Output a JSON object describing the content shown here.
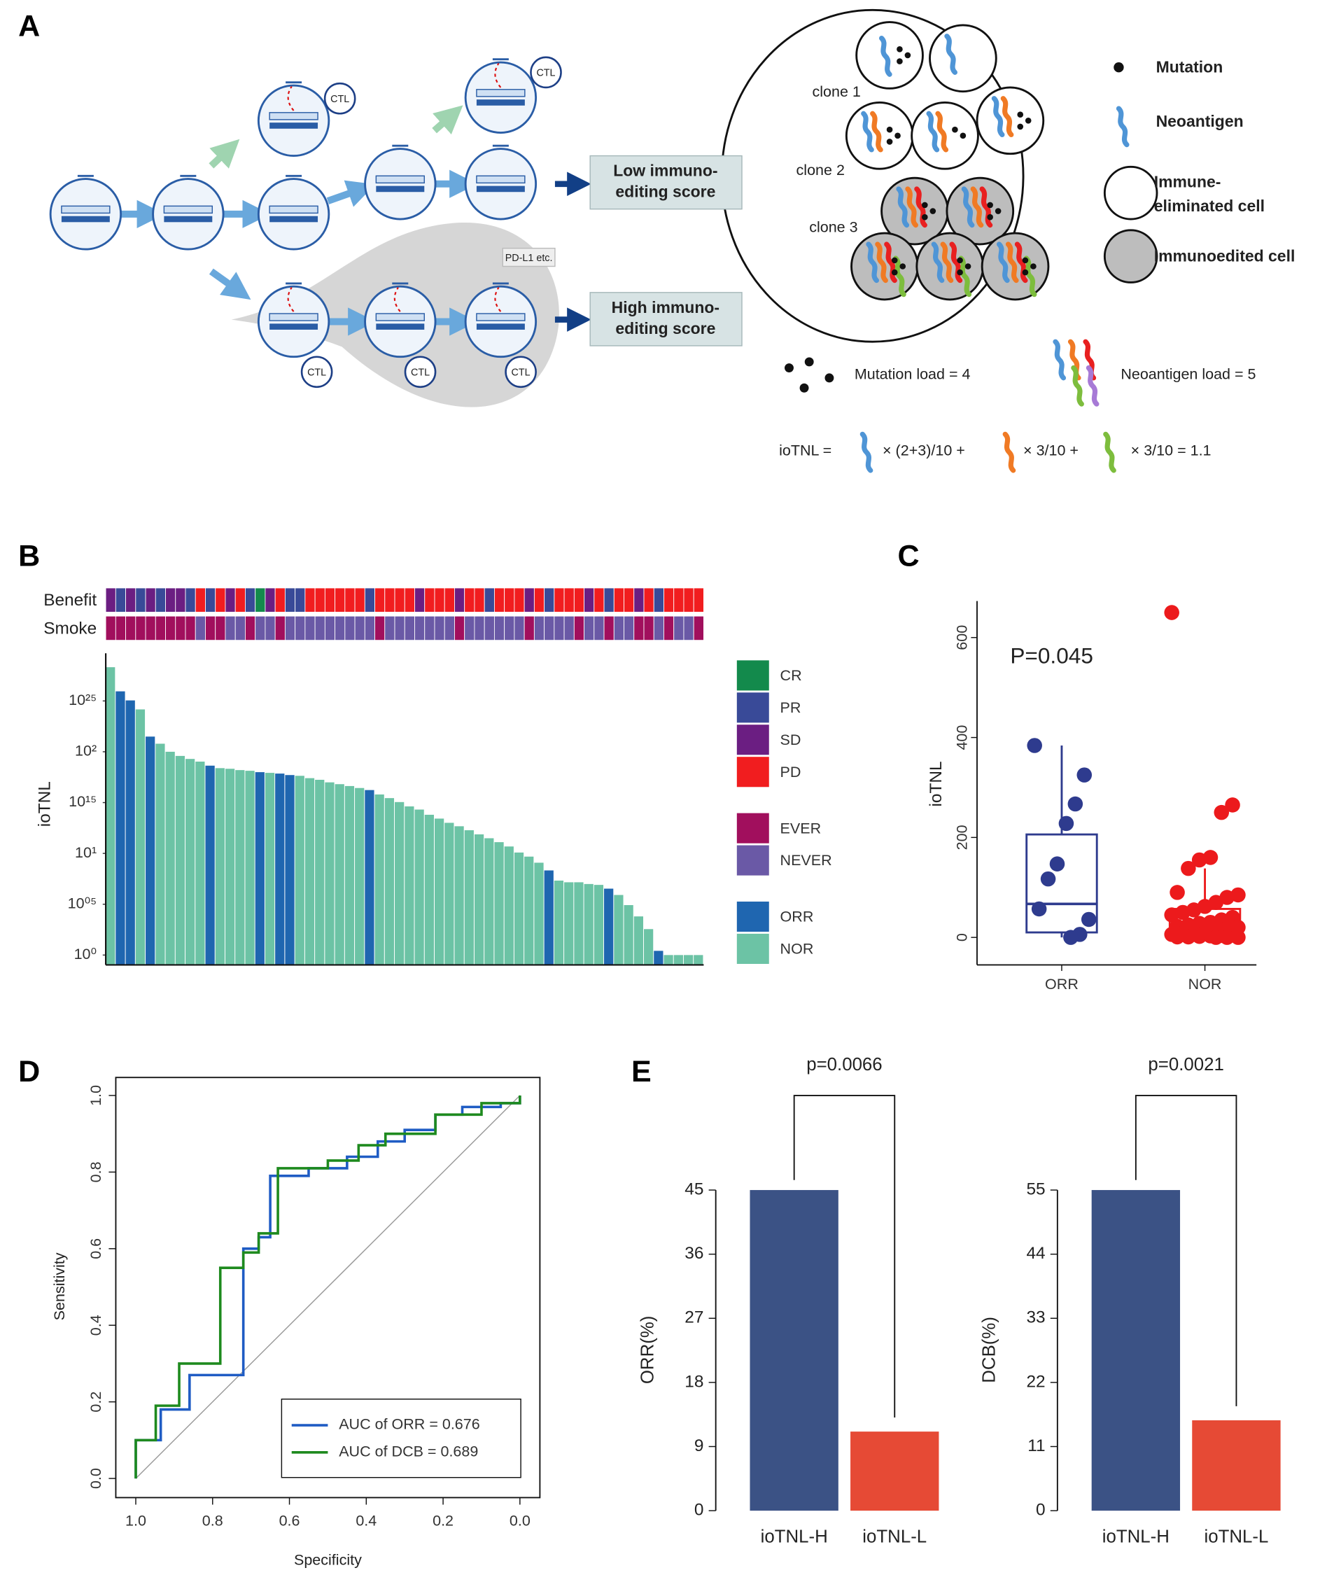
{
  "panel_labels": [
    "A",
    "B",
    "C",
    "D",
    "E"
  ],
  "diagram": {
    "ctl": "CTL",
    "pdl1": "PD-L1 etc.",
    "low_score": [
      "Low immuno-",
      "editing score"
    ],
    "high_score": [
      "High immuno-",
      "editing score"
    ],
    "clones": [
      "clone 1",
      "clone 2",
      "clone 3"
    ],
    "legend": {
      "mutation": "Mutation",
      "neoantigen": "Neoantigen",
      "eliminated": [
        "Immune-",
        "eliminated cell"
      ],
      "edited": "Immunoedited cell"
    },
    "mutation_load": "Mutation load = 4",
    "neoantigen_load": "Neoantigen load = 5",
    "formula": [
      "ioTNL =",
      "× (2+3)/10 +",
      "× 3/10 +",
      "× 3/10 = 1.1"
    ]
  },
  "chart_data": [
    {
      "type": "bar",
      "y_label": "ioTNL",
      "log_y": true,
      "ylim": [
        0.8,
        930
      ],
      "yticks": [
        {
          "value": 1,
          "label": "10⁰"
        },
        {
          "value": 3.162,
          "label": "10⁰⁵"
        },
        {
          "value": 10,
          "label": "10¹"
        },
        {
          "value": 31.62,
          "label": "10¹⁵"
        },
        {
          "value": 100,
          "label": "10²"
        },
        {
          "value": 316.2,
          "label": "10²⁵"
        }
      ],
      "values": [
        679,
        393,
        320,
        261,
        141,
        120,
        100,
        91,
        85,
        80,
        73,
        69,
        68,
        66,
        65,
        63,
        62,
        61,
        59,
        58,
        55,
        53,
        50,
        48,
        46,
        44,
        42,
        38,
        35,
        32,
        29,
        27,
        24,
        22,
        20,
        18.5,
        16.9,
        15.4,
        14.1,
        12.9,
        11.7,
        10.2,
        9.3,
        8.1,
        6.8,
        5.4,
        5.2,
        5.2,
        5.0,
        4.9,
        4.5,
        3.9,
        3.1,
        2.4,
        1.8,
        1.1,
        1,
        1,
        1,
        1
      ],
      "response": [
        "NOR",
        "ORR",
        "ORR",
        "NOR",
        "ORR",
        "NOR",
        "NOR",
        "NOR",
        "NOR",
        "NOR",
        "ORR",
        "NOR",
        "NOR",
        "NOR",
        "NOR",
        "ORR",
        "NOR",
        "ORR",
        "ORR",
        "NOR",
        "NOR",
        "NOR",
        "NOR",
        "NOR",
        "NOR",
        "NOR",
        "ORR",
        "NOR",
        "NOR",
        "NOR",
        "NOR",
        "NOR",
        "NOR",
        "NOR",
        "NOR",
        "NOR",
        "NOR",
        "NOR",
        "NOR",
        "NOR",
        "NOR",
        "NOR",
        "NOR",
        "NOR",
        "ORR",
        "NOR",
        "NOR",
        "NOR",
        "NOR",
        "NOR",
        "ORR",
        "NOR",
        "NOR",
        "NOR",
        "NOR",
        "ORR",
        "NOR",
        "NOR",
        "NOR",
        "NOR"
      ],
      "strip_labels": [
        "Benefit",
        "Smoke"
      ],
      "benefit": [
        "SD",
        "PR",
        "SD",
        "PR",
        "SD",
        "PR",
        "SD",
        "SD",
        "PR",
        "PD",
        "PR",
        "PD",
        "SD",
        "PD",
        "PR",
        "CR",
        "SD",
        "PD",
        "PR",
        "PR",
        "PD",
        "PD",
        "PD",
        "PD",
        "PD",
        "PD",
        "PR",
        "PD",
        "PD",
        "PD",
        "PD",
        "SD",
        "PD",
        "PD",
        "PD",
        "SD",
        "PD",
        "PD",
        "PR",
        "PD",
        "PD",
        "PD",
        "SD",
        "PD",
        "PR",
        "PD",
        "PD",
        "PD",
        "SD",
        "PD",
        "PR",
        "PD",
        "PD",
        "SD",
        "PD",
        "PR",
        "PD",
        "PD",
        "PD",
        "PD"
      ],
      "smoke": [
        "EVER",
        "EVER",
        "EVER",
        "EVER",
        "EVER",
        "EVER",
        "EVER",
        "EVER",
        "EVER",
        "NEVER",
        "EVER",
        "EVER",
        "NEVER",
        "NEVER",
        "EVER",
        "NEVER",
        "NEVER",
        "EVER",
        "NEVER",
        "NEVER",
        "NEVER",
        "NEVER",
        "NEVER",
        "NEVER",
        "NEVER",
        "NEVER",
        "NEVER",
        "EVER",
        "NEVER",
        "NEVER",
        "NEVER",
        "NEVER",
        "NEVER",
        "NEVER",
        "NEVER",
        "EVER",
        "NEVER",
        "NEVER",
        "NEVER",
        "NEVER",
        "NEVER",
        "NEVER",
        "EVER",
        "NEVER",
        "NEVER",
        "NEVER",
        "NEVER",
        "EVER",
        "NEVER",
        "NEVER",
        "EVER",
        "NEVER",
        "NEVER",
        "EVER",
        "EVER",
        "NEVER",
        "EVER",
        "NEVER",
        "NEVER",
        "EVER"
      ],
      "legend": [
        [
          {
            "name": "CR",
            "color": "#138a4c"
          },
          {
            "name": "PR",
            "color": "#394a98"
          },
          {
            "name": "SD",
            "color": "#6b1e82"
          },
          {
            "name": "PD",
            "color": "#f11d1f"
          }
        ],
        [
          {
            "name": "EVER",
            "color": "#a10f5d"
          },
          {
            "name": "NEVER",
            "color": "#6a59a6"
          }
        ],
        [
          {
            "name": "ORR",
            "color": "#1f66b0"
          },
          {
            "name": "NOR",
            "color": "#6cc3a5"
          }
        ]
      ]
    },
    {
      "type": "box",
      "y_label": "ioTNL",
      "annotation": "P=0.045",
      "categories": [
        "ORR",
        "NOR"
      ],
      "colors": [
        "#2e3b8e",
        "#ec1a1c"
      ],
      "ylim": [
        -55,
        673
      ],
      "yticks": [
        0,
        200,
        400,
        600
      ],
      "points": [
        [
          384,
          325,
          267,
          228,
          147,
          117,
          57,
          36,
          6,
          0
        ],
        [
          650,
          265,
          250,
          160,
          155,
          138,
          90,
          85,
          80,
          70,
          62,
          55,
          50,
          45,
          40,
          35,
          30,
          28,
          25,
          22,
          20,
          18,
          15,
          12,
          10,
          8,
          6,
          5,
          4,
          3,
          2,
          1,
          1,
          0,
          0,
          0
        ]
      ],
      "boxes": [
        {
          "whisker_low": 0,
          "q1": 10,
          "median": 67,
          "q3": 206,
          "whisker_high": 384
        },
        {
          "whisker_low": 0,
          "q1": 6,
          "median": 22,
          "q3": 57,
          "whisker_high": 138
        }
      ]
    },
    {
      "type": "line",
      "x_label": "Specificity",
      "y_label": "Sensitivity",
      "xlim": [
        1.052,
        -0.052
      ],
      "ylim": [
        -0.05,
        1.047
      ],
      "xticks": [
        {
          "value": 1,
          "label": "1.0"
        },
        0.8,
        0.6,
        0.4,
        0.2,
        {
          "value": 0,
          "label": "0.0"
        }
      ],
      "yticks": [
        {
          "value": 0,
          "label": "0.0"
        },
        0.2,
        0.4,
        0.6,
        0.8,
        {
          "value": 1,
          "label": "1.0"
        }
      ],
      "series": [
        {
          "name": "AUC of ORR = 0.676",
          "color": "#1f5cc4",
          "x": [
            1,
            1,
            0.935,
            0.935,
            0.86,
            0.86,
            0.72,
            0.72,
            0.68,
            0.68,
            0.65,
            0.65,
            0.55,
            0.55,
            0.45,
            0.45,
            0.37,
            0.37,
            0.3,
            0.3,
            0.22,
            0.22,
            0.15,
            0.15,
            0.05,
            0.05,
            0,
            0
          ],
          "values": [
            0,
            0.1,
            0.1,
            0.18,
            0.18,
            0.27,
            0.27,
            0.6,
            0.6,
            0.63,
            0.63,
            0.79,
            0.79,
            0.81,
            0.81,
            0.84,
            0.84,
            0.88,
            0.88,
            0.91,
            0.91,
            0.95,
            0.95,
            0.97,
            0.97,
            0.98,
            0.98,
            1
          ]
        },
        {
          "name": "AUC of DCB = 0.689",
          "color": "#1e8a1e",
          "x": [
            1,
            1,
            0.948,
            0.948,
            0.887,
            0.887,
            0.78,
            0.78,
            0.72,
            0.72,
            0.68,
            0.68,
            0.63,
            0.63,
            0.5,
            0.5,
            0.42,
            0.42,
            0.35,
            0.35,
            0.22,
            0.22,
            0.1,
            0.1,
            0,
            0
          ],
          "values": [
            0,
            0.1,
            0.1,
            0.19,
            0.19,
            0.3,
            0.3,
            0.55,
            0.55,
            0.59,
            0.59,
            0.64,
            0.64,
            0.81,
            0.81,
            0.83,
            0.83,
            0.87,
            0.87,
            0.9,
            0.9,
            0.95,
            0.95,
            0.98,
            0.98,
            1
          ]
        }
      ]
    },
    {
      "type": "bar",
      "y_label": "ORR(%)",
      "categories": [
        "ioTNL-H",
        "ioTNL-L"
      ],
      "values": [
        45,
        11.1
      ],
      "colors": [
        "#3b5285",
        "#e64a35"
      ],
      "ylim": [
        0,
        45
      ],
      "yticks": [
        0,
        9,
        18,
        27,
        36,
        45
      ],
      "annotation": "p=0.0066"
    },
    {
      "type": "bar",
      "y_label": "DCB(%)",
      "categories": [
        "ioTNL-H",
        "ioTNL-L"
      ],
      "values": [
        55,
        15.5
      ],
      "colors": [
        "#3b5285",
        "#e64a35"
      ],
      "ylim": [
        0,
        55
      ],
      "yticks": [
        0,
        11,
        22,
        33,
        44,
        55
      ],
      "annotation": "p=0.0021"
    }
  ]
}
